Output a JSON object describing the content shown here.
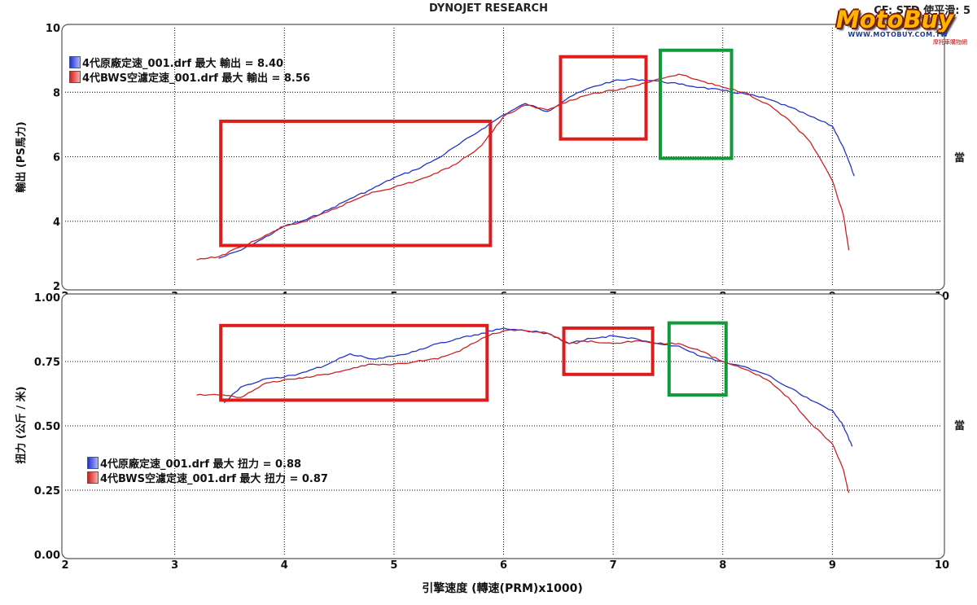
{
  "header": {
    "title": "DYNOJET RESEARCH",
    "right_text": "CF: STD  使平滑: 5"
  },
  "logo": {
    "name": "MotoBuy",
    "url": "WWW.MOTOBUY.COM.TW",
    "tagline": "摩托車購物網"
  },
  "side_label": "當",
  "colors": {
    "blue": "#2233cc",
    "red": "#cc2222",
    "box_red": "#dd1c1c",
    "box_green": "#119a3a",
    "grid": "#000000",
    "panel_border": "#555555"
  },
  "chart_data": [
    {
      "type": "line",
      "ylabel": "輸出 (PS馬力)",
      "xlabel": "",
      "xlim": [
        2,
        10
      ],
      "ylim": [
        2,
        10
      ],
      "xticks": [
        "2",
        "3",
        "4",
        "5",
        "6",
        "7",
        "8",
        "9",
        "10"
      ],
      "yticks": [
        "2",
        "4",
        "6",
        "8",
        "10"
      ],
      "grid": true,
      "legend_position": "top-left",
      "series": [
        {
          "name": "4代原廠定速_001.drf 最大 輸出 = 8.40",
          "color": "blue",
          "x": [
            3.4,
            3.6,
            3.8,
            4.0,
            4.2,
            4.4,
            4.6,
            4.8,
            5.0,
            5.2,
            5.4,
            5.6,
            5.8,
            6.0,
            6.2,
            6.4,
            6.6,
            6.8,
            7.0,
            7.2,
            7.4,
            7.6,
            7.8,
            8.0,
            8.2,
            8.4,
            8.6,
            8.8,
            9.0,
            9.1,
            9.2
          ],
          "y": [
            2.85,
            3.1,
            3.45,
            3.85,
            4.05,
            4.35,
            4.7,
            5.0,
            5.35,
            5.6,
            5.95,
            6.4,
            6.85,
            7.3,
            7.65,
            7.4,
            7.85,
            8.15,
            8.35,
            8.4,
            8.35,
            8.25,
            8.15,
            8.05,
            7.95,
            7.8,
            7.55,
            7.25,
            6.95,
            6.3,
            5.4
          ]
        },
        {
          "name": "4代BWS空濾定速_001.drf 最大 輸出 = 8.56",
          "color": "red",
          "x": [
            3.2,
            3.4,
            3.6,
            3.8,
            4.0,
            4.2,
            4.4,
            4.6,
            4.8,
            5.0,
            5.2,
            5.4,
            5.6,
            5.8,
            6.0,
            6.2,
            6.4,
            6.6,
            6.8,
            7.0,
            7.2,
            7.4,
            7.6,
            7.8,
            8.0,
            8.2,
            8.4,
            8.6,
            8.8,
            9.0,
            9.1,
            9.15
          ],
          "y": [
            2.8,
            2.9,
            3.2,
            3.5,
            3.85,
            4.0,
            4.3,
            4.6,
            4.9,
            5.05,
            5.25,
            5.5,
            5.85,
            6.35,
            7.25,
            7.6,
            7.45,
            7.75,
            7.95,
            8.05,
            8.2,
            8.4,
            8.56,
            8.35,
            8.15,
            8.0,
            7.65,
            7.15,
            6.45,
            5.25,
            4.2,
            3.1
          ]
        }
      ],
      "annotations": [
        {
          "color": "box_red",
          "x0": 3.42,
          "x1": 5.88,
          "y0": 3.25,
          "y1": 7.1
        },
        {
          "color": "box_red",
          "x0": 6.52,
          "x1": 7.3,
          "y0": 6.55,
          "y1": 9.1
        },
        {
          "color": "box_green",
          "x0": 7.43,
          "x1": 8.08,
          "y0": 5.95,
          "y1": 9.3
        }
      ]
    },
    {
      "type": "line",
      "ylabel": "扭力 (公斤 / 米)",
      "xlabel": "引擎速度 (轉速(PRM)x1000)",
      "xlim": [
        2,
        10
      ],
      "ylim": [
        0,
        1
      ],
      "xticks": [
        "2",
        "3",
        "4",
        "5",
        "6",
        "7",
        "8",
        "9",
        "10"
      ],
      "yticks": [
        "0.00",
        "0.25",
        "0.50",
        "0.75",
        "1.00"
      ],
      "grid": true,
      "legend_position": "bottom-left",
      "series": [
        {
          "name": "4代原廠定速_001.drf 最大 扭力 = 0.88",
          "color": "blue",
          "x": [
            3.45,
            3.6,
            3.8,
            4.0,
            4.2,
            4.4,
            4.6,
            4.8,
            5.0,
            5.2,
            5.4,
            5.6,
            5.8,
            6.0,
            6.2,
            6.4,
            6.6,
            6.8,
            7.0,
            7.2,
            7.4,
            7.6,
            7.8,
            8.0,
            8.2,
            8.4,
            8.6,
            8.8,
            9.0,
            9.1,
            9.18
          ],
          "y": [
            0.59,
            0.65,
            0.68,
            0.69,
            0.71,
            0.74,
            0.78,
            0.76,
            0.77,
            0.79,
            0.82,
            0.84,
            0.86,
            0.88,
            0.87,
            0.86,
            0.82,
            0.84,
            0.85,
            0.84,
            0.82,
            0.81,
            0.77,
            0.75,
            0.73,
            0.7,
            0.65,
            0.6,
            0.56,
            0.5,
            0.42
          ]
        },
        {
          "name": "4代BWS空濾定速_001.drf 最大 扭力 = 0.87",
          "color": "red",
          "x": [
            3.2,
            3.4,
            3.6,
            3.8,
            4.0,
            4.2,
            4.4,
            4.6,
            4.8,
            5.0,
            5.2,
            5.4,
            5.6,
            5.8,
            6.0,
            6.2,
            6.4,
            6.6,
            6.8,
            7.0,
            7.2,
            7.4,
            7.6,
            7.8,
            8.0,
            8.2,
            8.4,
            8.6,
            8.8,
            9.0,
            9.1,
            9.15
          ],
          "y": [
            0.62,
            0.62,
            0.61,
            0.66,
            0.68,
            0.69,
            0.7,
            0.72,
            0.74,
            0.74,
            0.75,
            0.76,
            0.79,
            0.84,
            0.87,
            0.87,
            0.86,
            0.82,
            0.83,
            0.82,
            0.83,
            0.82,
            0.82,
            0.79,
            0.75,
            0.72,
            0.68,
            0.61,
            0.51,
            0.43,
            0.33,
            0.24
          ]
        }
      ],
      "annotations": [
        {
          "color": "box_red",
          "x0": 3.42,
          "x1": 5.85,
          "y0": 0.6,
          "y1": 0.89
        },
        {
          "color": "box_red",
          "x0": 6.55,
          "x1": 7.36,
          "y0": 0.7,
          "y1": 0.88
        },
        {
          "color": "box_green",
          "x0": 7.51,
          "x1": 8.03,
          "y0": 0.62,
          "y1": 0.9
        }
      ]
    }
  ]
}
